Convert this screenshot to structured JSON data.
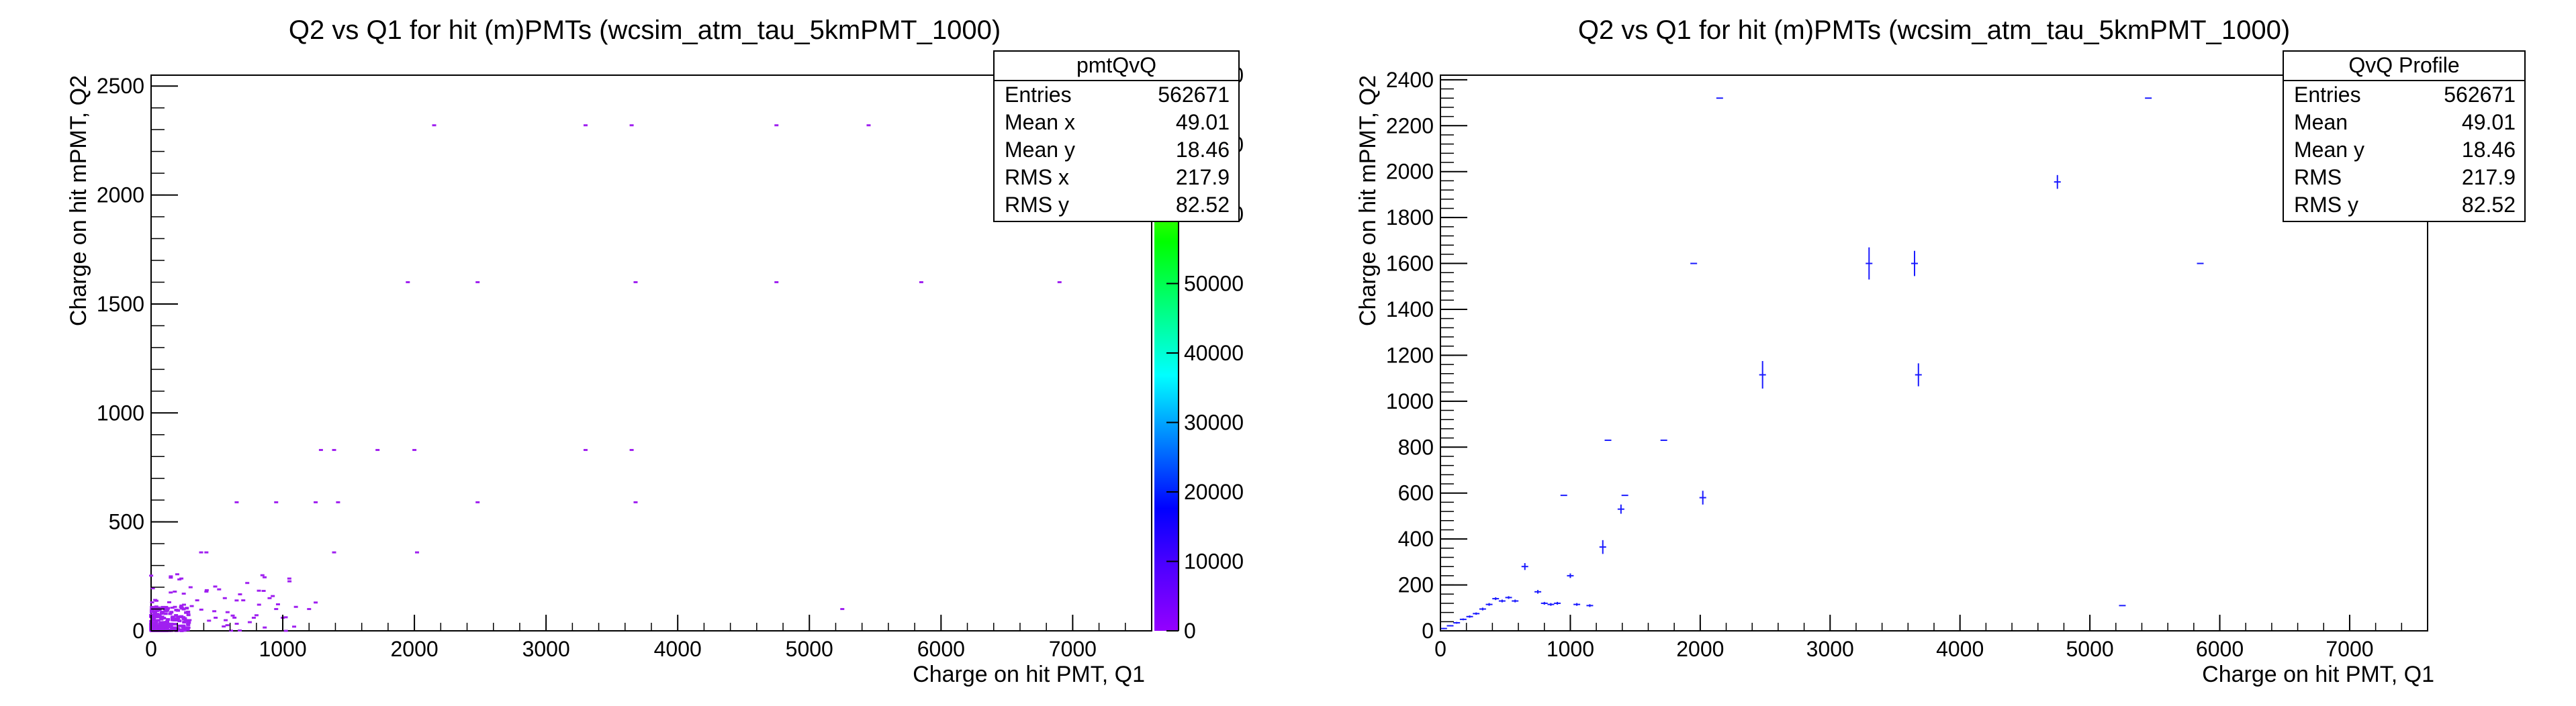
{
  "colors": {
    "frame": "#000000",
    "marker_2d": "#a020f0",
    "profile_point": "#1a1aff",
    "background": "#ffffff"
  },
  "chart_data": [
    {
      "type": "heatmap",
      "title": "Q2 vs Q1 for hit (m)PMTs (wcsim_atm_tau_5kmPMT_1000)",
      "xlabel": "Charge on hit PMT, Q1",
      "ylabel": "Charge on hit mPMT, Q2",
      "xlim": [
        0,
        7600
      ],
      "ylim": [
        0,
        2550
      ],
      "xticks": [
        0,
        1000,
        2000,
        3000,
        4000,
        5000,
        6000,
        7000
      ],
      "yticks": [
        0,
        500,
        1000,
        1500,
        2000,
        2500
      ],
      "colorbar": {
        "range": [
          0,
          80000
        ],
        "ticks": [
          0,
          10000,
          20000,
          30000,
          40000,
          50000,
          60000,
          70000,
          80000
        ]
      },
      "stats": {
        "name": "pmtQvQ",
        "rows": [
          {
            "label": "Entries",
            "value": "562671"
          },
          {
            "label": "Mean x",
            "value": "49.01"
          },
          {
            "label": "Mean y",
            "value": "18.46"
          },
          {
            "label": "RMS x",
            "value": "217.9"
          },
          {
            "label": "RMS y",
            "value": "82.52"
          }
        ]
      },
      "points": [
        [
          2150,
          2320
        ],
        [
          3300,
          2320
        ],
        [
          3650,
          2320
        ],
        [
          4750,
          2320
        ],
        [
          5450,
          2320
        ],
        [
          1950,
          1600
        ],
        [
          2480,
          1600
        ],
        [
          3680,
          1600
        ],
        [
          4750,
          1600
        ],
        [
          5850,
          1600
        ],
        [
          6900,
          1600
        ],
        [
          1290,
          830
        ],
        [
          1390,
          830
        ],
        [
          1720,
          830
        ],
        [
          2000,
          830
        ],
        [
          3300,
          830
        ],
        [
          3650,
          830
        ],
        [
          650,
          590
        ],
        [
          950,
          590
        ],
        [
          1250,
          590
        ],
        [
          1420,
          590
        ],
        [
          2480,
          590
        ],
        [
          3680,
          590
        ],
        [
          2020,
          360
        ],
        [
          1390,
          360
        ],
        [
          380,
          360
        ],
        [
          420,
          360
        ],
        [
          150,
          250
        ],
        [
          230,
          240
        ],
        [
          300,
          200
        ],
        [
          420,
          180
        ],
        [
          560,
          150
        ],
        [
          700,
          140
        ],
        [
          820,
          120
        ],
        [
          950,
          100
        ],
        [
          1050,
          240
        ],
        [
          1100,
          110
        ],
        [
          1200,
          100
        ],
        [
          1250,
          130
        ],
        [
          5250,
          100
        ],
        [
          250,
          120
        ],
        [
          350,
          140
        ],
        [
          480,
          90
        ],
        [
          620,
          70
        ],
        [
          780,
          60
        ],
        [
          900,
          150
        ],
        [
          1000,
          60
        ],
        [
          180,
          180
        ]
      ],
      "dense_cluster": {
        "x_max": 300,
        "y_max": 110
      }
    },
    {
      "type": "scatter",
      "title": "Q2 vs Q1 for hit (m)PMTs (wcsim_atm_tau_5kmPMT_1000)",
      "xlabel": "Charge on hit PMT, Q1",
      "ylabel": "Charge on hit mPMT, Q2",
      "xlim": [
        0,
        7600
      ],
      "ylim": [
        0,
        2420
      ],
      "xticks": [
        0,
        1000,
        2000,
        3000,
        4000,
        5000,
        6000,
        7000
      ],
      "yticks": [
        0,
        200,
        400,
        600,
        800,
        1000,
        1200,
        1400,
        1600,
        1800,
        2000,
        2200,
        2400
      ],
      "stats": {
        "name": "QvQ Profile",
        "rows": [
          {
            "label": "Entries",
            "value": "562671"
          },
          {
            "label": "Mean",
            "value": "49.01"
          },
          {
            "label": "Mean y",
            "value": "18.46"
          },
          {
            "label": "RMS",
            "value": "217.9"
          },
          {
            "label": "RMS y",
            "value": "82.52"
          }
        ]
      },
      "points": [
        {
          "x": 25,
          "y": 10,
          "err": 3
        },
        {
          "x": 75,
          "y": 22,
          "err": 3
        },
        {
          "x": 125,
          "y": 35,
          "err": 4
        },
        {
          "x": 175,
          "y": 50,
          "err": 4
        },
        {
          "x": 225,
          "y": 62,
          "err": 5
        },
        {
          "x": 275,
          "y": 75,
          "err": 5
        },
        {
          "x": 325,
          "y": 95,
          "err": 6
        },
        {
          "x": 375,
          "y": 115,
          "err": 6
        },
        {
          "x": 425,
          "y": 140,
          "err": 6
        },
        {
          "x": 475,
          "y": 130,
          "err": 6
        },
        {
          "x": 525,
          "y": 145,
          "err": 6
        },
        {
          "x": 575,
          "y": 130,
          "err": 6
        },
        {
          "x": 650,
          "y": 280,
          "err": 15
        },
        {
          "x": 750,
          "y": 170,
          "err": 8
        },
        {
          "x": 800,
          "y": 120,
          "err": 6
        },
        {
          "x": 850,
          "y": 115,
          "err": 6
        },
        {
          "x": 900,
          "y": 120,
          "err": 6
        },
        {
          "x": 950,
          "y": 590,
          "err": 0
        },
        {
          "x": 1000,
          "y": 240,
          "err": 10
        },
        {
          "x": 1050,
          "y": 115,
          "err": 6
        },
        {
          "x": 1150,
          "y": 110,
          "err": 6
        },
        {
          "x": 1250,
          "y": 365,
          "err": 30
        },
        {
          "x": 1290,
          "y": 830,
          "err": 0
        },
        {
          "x": 1390,
          "y": 530,
          "err": 20
        },
        {
          "x": 1420,
          "y": 590,
          "err": 0
        },
        {
          "x": 1720,
          "y": 830,
          "err": 0
        },
        {
          "x": 1950,
          "y": 1600,
          "err": 0
        },
        {
          "x": 2020,
          "y": 580,
          "err": 30
        },
        {
          "x": 2150,
          "y": 2320,
          "err": 0
        },
        {
          "x": 2480,
          "y": 1115,
          "err": 60
        },
        {
          "x": 3300,
          "y": 1600,
          "err": 70
        },
        {
          "x": 3650,
          "y": 1600,
          "err": 55
        },
        {
          "x": 3680,
          "y": 1115,
          "err": 50
        },
        {
          "x": 4750,
          "y": 1955,
          "err": 30
        },
        {
          "x": 5250,
          "y": 110,
          "err": 0
        },
        {
          "x": 5450,
          "y": 2320,
          "err": 0
        },
        {
          "x": 5850,
          "y": 1600,
          "err": 0
        }
      ]
    }
  ]
}
